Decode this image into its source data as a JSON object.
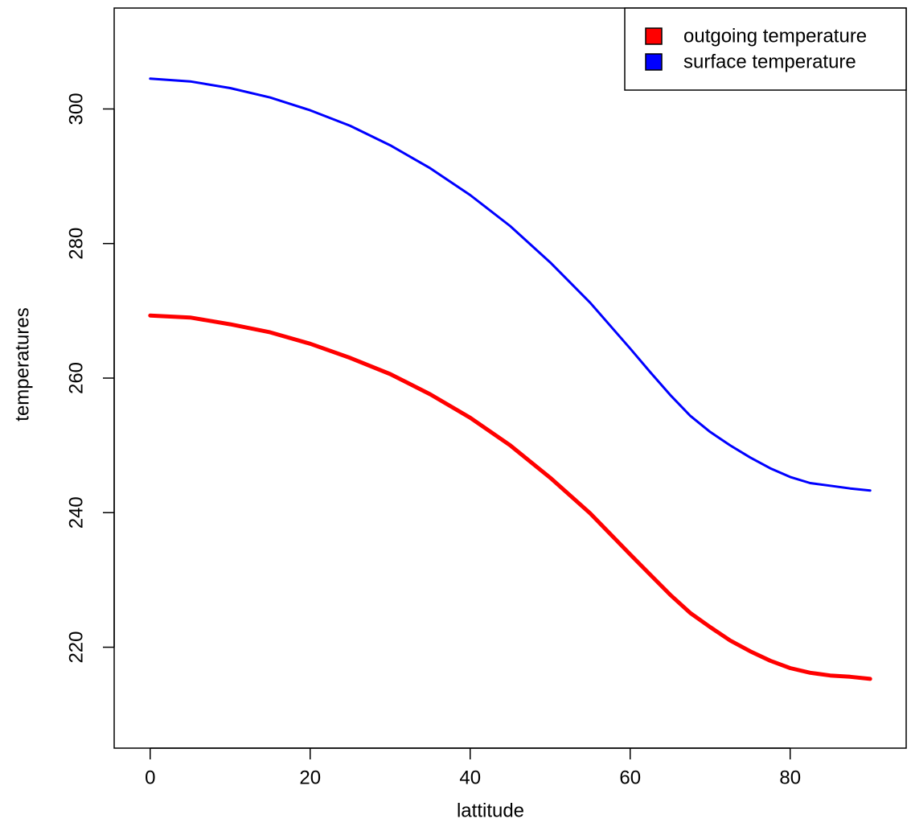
{
  "chart_data": {
    "type": "line",
    "xlabel": "lattitude",
    "ylabel": "temperatures",
    "xlim": [
      -4.5,
      94.5
    ],
    "ylim": [
      205,
      315
    ],
    "xticks": [
      0,
      20,
      40,
      60,
      80
    ],
    "yticks": [
      220,
      240,
      260,
      280,
      300
    ],
    "grid": false,
    "legend": "top-right",
    "series": [
      {
        "name": "outgoing temperature",
        "color": "#ff0000",
        "x": [
          0,
          5,
          10,
          15,
          20,
          25,
          30,
          35,
          40,
          45,
          50,
          55,
          60,
          62.5,
          65,
          67.5,
          70,
          72.5,
          75,
          77.5,
          80,
          82.5,
          85,
          87.5,
          90
        ],
        "y": [
          269.3,
          269.0,
          268.0,
          266.8,
          265.1,
          263.0,
          260.6,
          257.6,
          254.1,
          250.0,
          245.2,
          239.9,
          233.8,
          230.8,
          227.8,
          225.1,
          223.0,
          221.0,
          219.4,
          218.0,
          216.9,
          216.2,
          215.8,
          215.6,
          215.3
        ]
      },
      {
        "name": "surface temperature",
        "color": "#0000ff",
        "x": [
          0,
          5,
          10,
          15,
          20,
          25,
          30,
          35,
          40,
          45,
          50,
          55,
          60,
          62.5,
          65,
          67.5,
          70,
          72.5,
          75,
          77.5,
          80,
          82.5,
          85,
          87.5,
          90
        ],
        "y": [
          304.5,
          304.1,
          303.1,
          301.7,
          299.8,
          297.5,
          294.6,
          291.2,
          287.2,
          282.6,
          277.2,
          271.2,
          264.4,
          260.9,
          257.5,
          254.4,
          252.0,
          250.0,
          248.2,
          246.6,
          245.3,
          244.4,
          244.0,
          243.6,
          243.3
        ]
      }
    ]
  }
}
